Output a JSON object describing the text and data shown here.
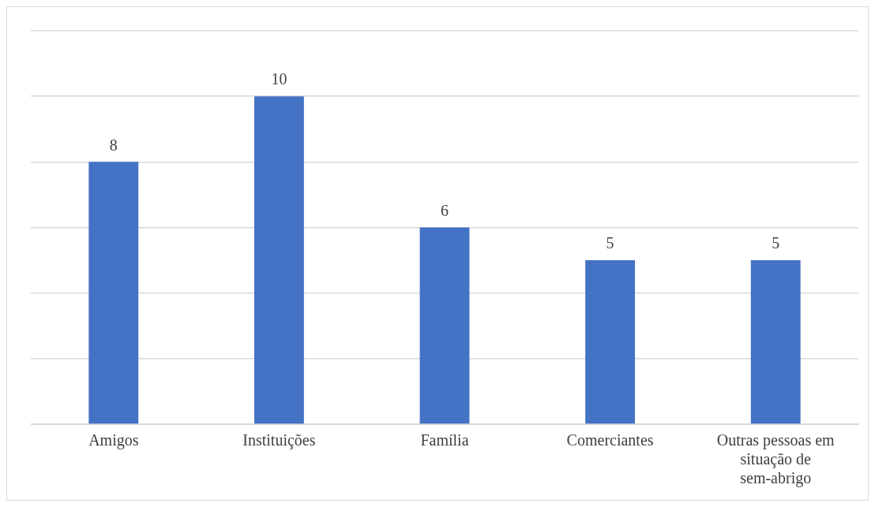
{
  "chart_data": {
    "type": "bar",
    "categories": [
      "Amigos",
      "Instituições",
      "Família",
      "Comerciantes",
      "Outras pessoas em situação de sem-abrigo"
    ],
    "values": [
      8,
      10,
      6,
      5,
      5
    ],
    "color": "#4472c4",
    "ylim": [
      0,
      12
    ],
    "yticks": [
      {
        "value": 0,
        "label": null
      },
      {
        "value": 2,
        "label": null
      },
      {
        "value": 4,
        "label": null
      },
      {
        "value": 6,
        "label": null
      },
      {
        "value": 8,
        "label": null
      },
      {
        "value": 10,
        "label": null
      },
      {
        "value": 12,
        "label": null
      }
    ],
    "grid": "y",
    "tick_labels": "x",
    "data_labels": true,
    "legend": false
  }
}
